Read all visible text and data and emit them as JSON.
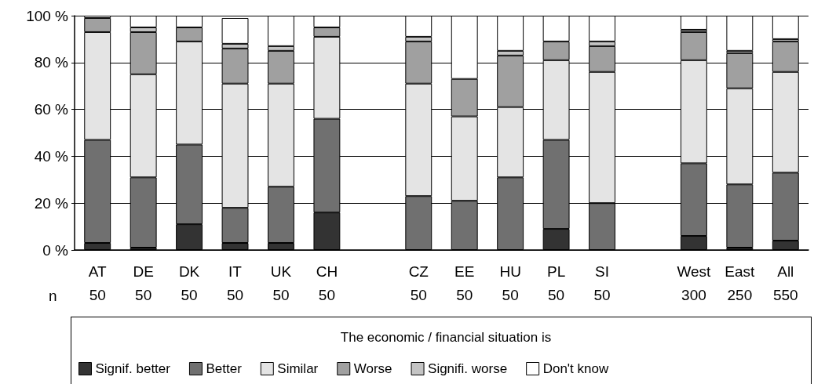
{
  "chart_data": {
    "type": "bar",
    "stacked": true,
    "categories": [
      "AT\n50",
      "DE\n50",
      "DK\n50",
      "IT\n50",
      "UK\n50",
      "CH\n50",
      null,
      "CZ\n50",
      "EE\n50",
      "HU\n50",
      "PL\n50",
      "SI\n50",
      null,
      "West\n300",
      "East\n250",
      "All\n550"
    ],
    "series": [
      {
        "name": "Signif. better",
        "color": "#333333",
        "values": [
          3,
          1,
          11,
          3,
          3,
          16,
          null,
          0,
          0,
          0,
          9,
          0,
          null,
          6,
          1,
          4
        ]
      },
      {
        "name": "Better",
        "color": "#707070",
        "values": [
          44,
          30,
          34,
          15,
          24,
          40,
          null,
          23,
          21,
          31,
          38,
          20,
          null,
          31,
          27,
          29
        ]
      },
      {
        "name": "Similar",
        "color": "#e4e4e4",
        "values": [
          46,
          44,
          44,
          53,
          44,
          35,
          null,
          48,
          36,
          30,
          34,
          56,
          null,
          44,
          41,
          43
        ]
      },
      {
        "name": "Worse",
        "color": "#a0a0a0",
        "values": [
          6,
          18,
          6,
          15,
          14,
          4,
          null,
          18,
          16,
          22,
          8,
          11,
          null,
          12,
          15,
          13
        ]
      },
      {
        "name": "Signifi. worse",
        "color": "#c4c4c4",
        "values": [
          0,
          2,
          0,
          2,
          2,
          0,
          null,
          2,
          0,
          2,
          0,
          2,
          null,
          1,
          1,
          1
        ]
      },
      {
        "name": "Don't know",
        "color": "#ffffff",
        "values": [
          1,
          5,
          5,
          11,
          13,
          5,
          null,
          9,
          27,
          15,
          11,
          11,
          null,
          6,
          15,
          10
        ]
      }
    ],
    "ylim": [
      0,
      100
    ],
    "yticks": [
      {
        "value": 0,
        "label": "0 %"
      },
      {
        "value": 20,
        "label": "20 %"
      },
      {
        "value": 40,
        "label": "40 %"
      },
      {
        "value": 60,
        "label": "60 %"
      },
      {
        "value": 80,
        "label": "80 %"
      },
      {
        "value": 100,
        "label": "100 %"
      }
    ],
    "grid": "y",
    "legend": "bottom",
    "legend_title": "The economic / financial situation is",
    "annotations": [
      "n"
    ]
  }
}
